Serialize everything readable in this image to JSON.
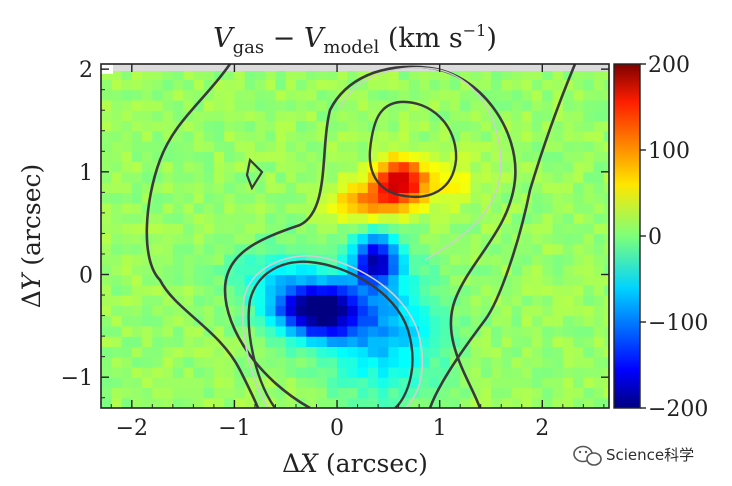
{
  "chart_data": {
    "type": "heatmap",
    "title": "V_gas − V_model (km s⁻¹)",
    "xlabel": "ΔX (arcsec)",
    "ylabel": "ΔY (arcsec)",
    "xlim": [
      -2.3,
      2.65
    ],
    "ylim": [
      -1.3,
      2.05
    ],
    "x_ticks": [
      -2,
      -1,
      0,
      1,
      2
    ],
    "x_tick_labels": [
      "−2",
      "−1",
      "0",
      "1",
      "2"
    ],
    "y_ticks": [
      -1,
      0,
      1,
      2
    ],
    "y_tick_labels": [
      "−1",
      "0",
      "1",
      "2"
    ],
    "colorbar": {
      "range": [
        -200,
        200
      ],
      "colormap": "jet",
      "ticks": [
        200,
        100,
        0,
        -100,
        -200
      ],
      "tick_labels": [
        "200",
        "100",
        "0",
        "−100",
        "−200"
      ]
    },
    "background_value": 10,
    "features": [
      {
        "label": "redshifted-peak",
        "x": 0.6,
        "y": 0.9,
        "value": 150
      },
      {
        "label": "red-lobe",
        "x": 0.25,
        "y": 0.75,
        "value": 70
      },
      {
        "label": "blue-core",
        "x": -0.2,
        "y": -0.35,
        "value": -200
      },
      {
        "label": "blue-ridge",
        "x": 0.35,
        "y": 0.15,
        "value": -160
      },
      {
        "label": "cyan-halo",
        "x": 0.4,
        "y": -0.4,
        "value": -70
      }
    ],
    "grid": false
  },
  "watermark": {
    "text": "Science科学",
    "icon": "wechat-logo"
  }
}
